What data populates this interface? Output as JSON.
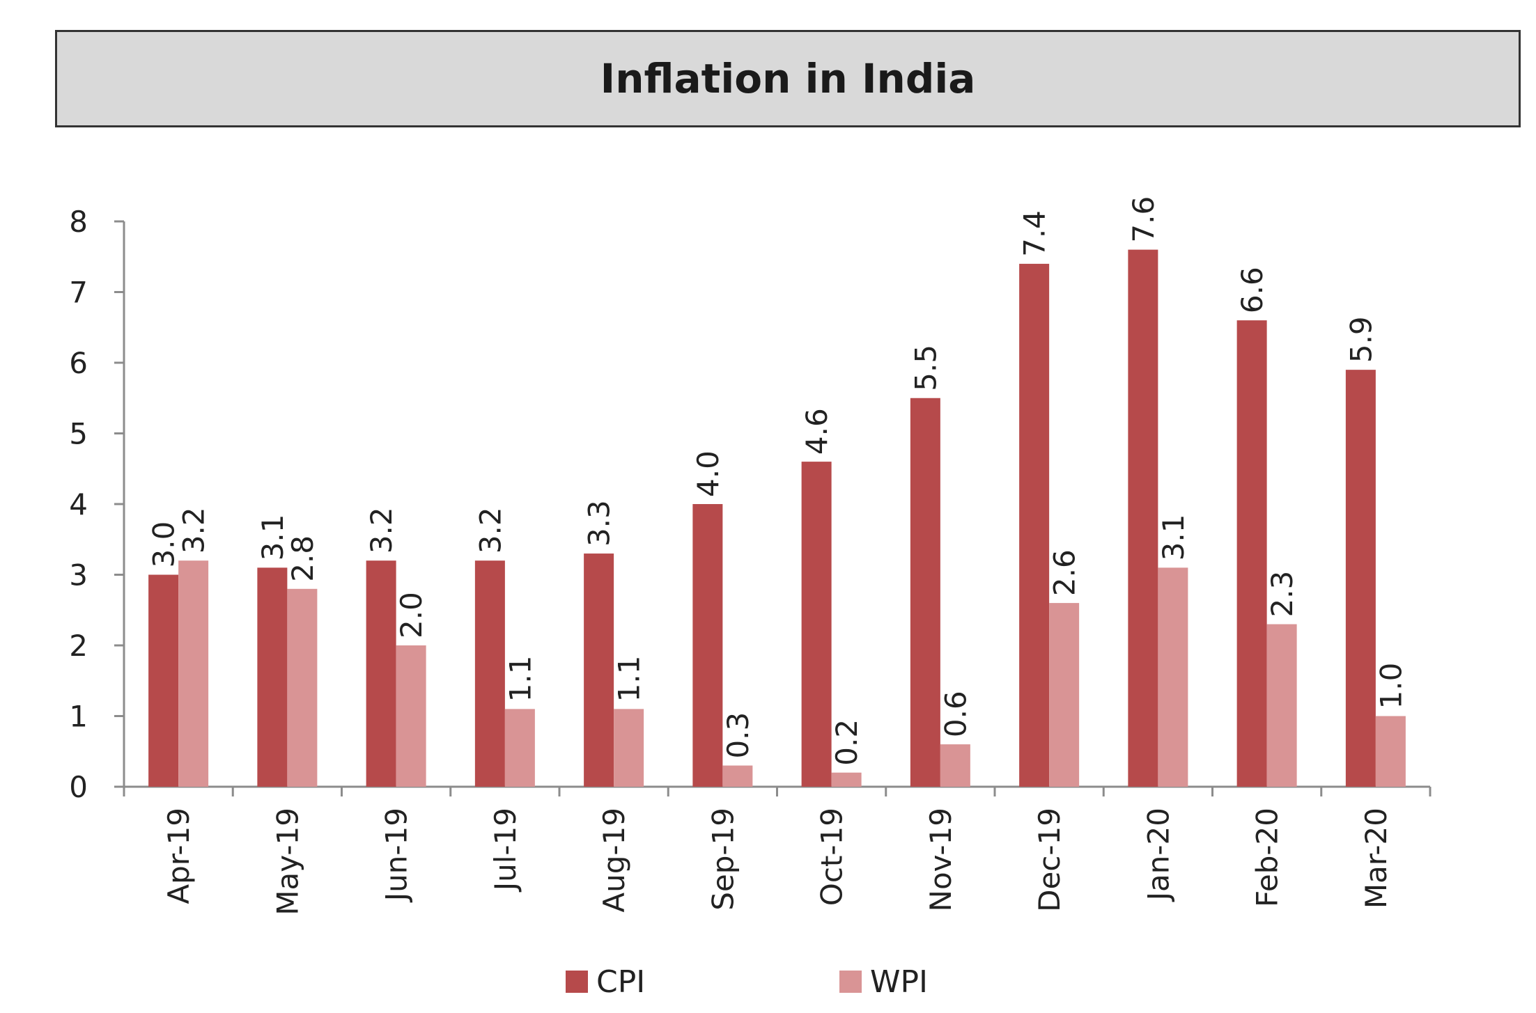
{
  "chart_data": {
    "type": "bar",
    "title": "Inflation in India",
    "categories": [
      "Apr-19",
      "May-19",
      "Jun-19",
      "Jul-19",
      "Aug-19",
      "Sep-19",
      "Oct-19",
      "Nov-19",
      "Dec-19",
      "Jan-20",
      "Feb-20",
      "Mar-20"
    ],
    "series": [
      {
        "name": "CPI",
        "color": "#b64a4b",
        "values": [
          3.0,
          3.1,
          3.2,
          3.2,
          3.3,
          4.0,
          4.6,
          5.5,
          7.4,
          7.6,
          6.6,
          5.9
        ],
        "labels": [
          "3.0",
          "3.1",
          "3.2",
          "3.2",
          "3.3",
          "4.0",
          "4.6",
          "5.5",
          "7.4",
          "7.6",
          "6.6",
          "5.9"
        ]
      },
      {
        "name": "WPI",
        "color": "#d99495",
        "values": [
          3.2,
          2.8,
          2.0,
          1.1,
          1.1,
          0.3,
          0.2,
          0.6,
          2.6,
          3.1,
          2.3,
          1.0
        ],
        "labels": [
          "3.2",
          "2.8",
          "2.0",
          "1.1",
          "1.1",
          "0.3",
          "0.2",
          "0.6",
          "2.6",
          "3.1",
          "2.3",
          "1.0"
        ]
      }
    ],
    "y_ticks": [
      "0",
      "1",
      "2",
      "3",
      "4",
      "5",
      "6",
      "7",
      "8"
    ],
    "ylim": [
      0,
      8
    ],
    "grid": false,
    "legend_position": "bottom-center"
  }
}
